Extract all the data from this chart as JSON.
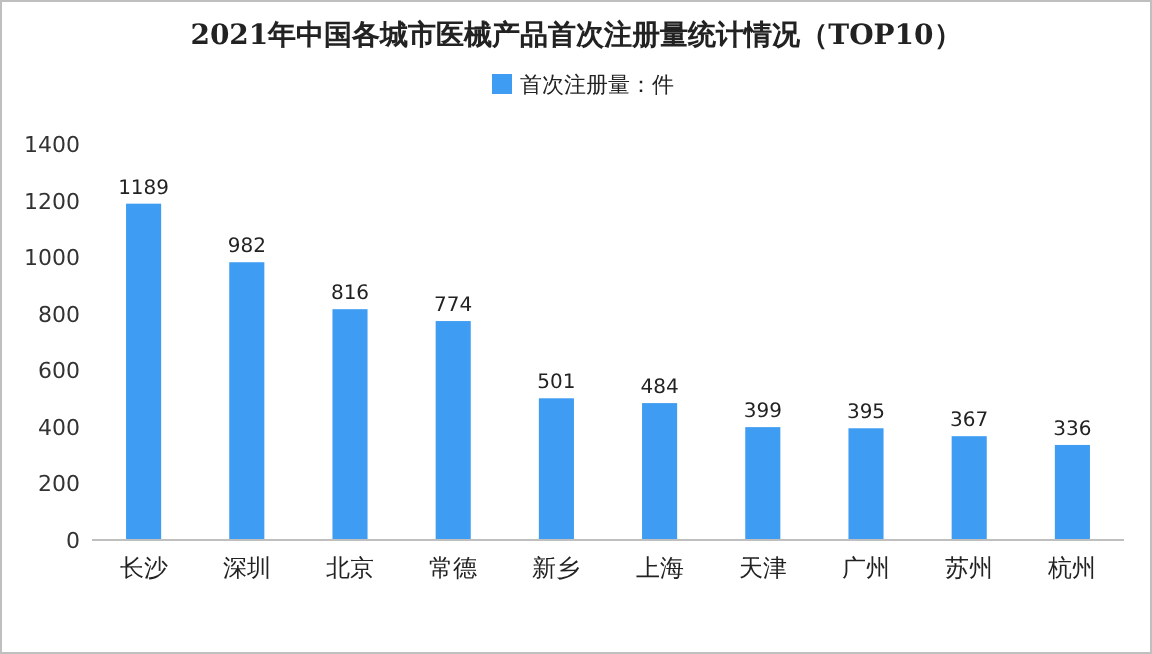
{
  "chart_data": {
    "type": "bar",
    "title": "2021年中国各城市医械产品首次注册量统计情况（TOP10）",
    "categories": [
      "长沙",
      "深圳",
      "北京",
      "常德",
      "新乡",
      "上海",
      "天津",
      "广州",
      "苏州",
      "杭州"
    ],
    "series": [
      {
        "name": "首次注册量：件",
        "color": "#3e9cf2",
        "values": [
          1189,
          982,
          816,
          774,
          501,
          484,
          399,
          395,
          367,
          336
        ]
      }
    ],
    "ylim": [
      0,
      1400
    ],
    "yticks": [
      0,
      200,
      400,
      600,
      800,
      1000,
      1200,
      1400
    ],
    "legend": "top",
    "data_labels": true
  }
}
